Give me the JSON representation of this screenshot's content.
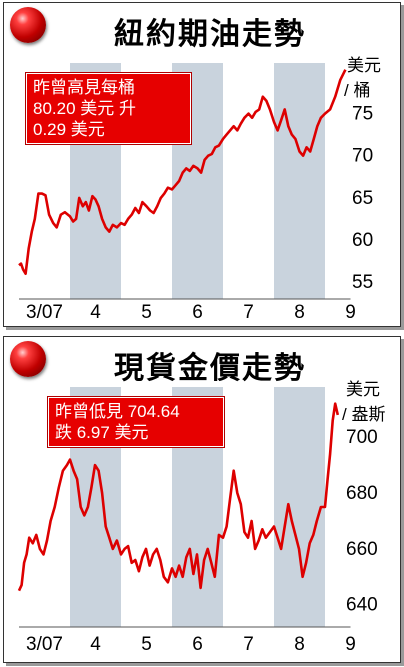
{
  "oil": {
    "title": "紐約期油走勢",
    "unit_line1": "美元",
    "unit_line2": "/ 桶",
    "callout": [
      "昨曾高見每桶",
      "80.20 美元 升",
      "0.29 美元"
    ]
  },
  "gold": {
    "title": "現貨金價走勢",
    "unit_line1": "美元",
    "unit_line2": "/ 盎斯",
    "callout": [
      "昨曾低見 704.64",
      "跌 6.97 美元"
    ]
  },
  "colors": {
    "line": "#dd0000",
    "band": "#c9d3dd",
    "callout_bg": "#e60000"
  },
  "chart_data": [
    {
      "type": "line",
      "title": "紐約期油走勢",
      "ylabel": "美元 / 桶",
      "months": [
        "3/07",
        "4",
        "5",
        "6",
        "7",
        "8",
        "9"
      ],
      "ylim": [
        53,
        81
      ],
      "yticks": [
        55,
        60,
        65,
        70,
        75
      ],
      "grid": false,
      "shaded_months": [
        "4",
        "6",
        "8"
      ],
      "x": [
        0,
        0.04,
        0.08,
        0.13,
        0.19,
        0.25,
        0.31,
        0.38,
        0.45,
        0.52,
        0.59,
        0.67,
        0.74,
        0.82,
        0.9,
        1.0,
        1.06,
        1.12,
        1.18,
        1.25,
        1.31,
        1.37,
        1.44,
        1.5,
        1.56,
        1.63,
        1.7,
        1.77,
        1.84,
        1.92,
        2.0,
        2.07,
        2.14,
        2.21,
        2.28,
        2.35,
        2.42,
        2.5,
        2.57,
        2.64,
        2.71,
        2.78,
        2.85,
        2.92,
        3.0,
        3.07,
        3.14,
        3.21,
        3.28,
        3.35,
        3.42,
        3.5,
        3.57,
        3.64,
        3.71,
        3.78,
        3.85,
        3.92,
        4.0,
        4.07,
        4.14,
        4.21,
        4.28,
        4.35,
        4.42,
        4.5,
        4.57,
        4.64,
        4.71,
        4.78,
        4.85,
        4.92,
        5.0,
        5.07,
        5.14,
        5.21,
        5.28,
        5.35,
        5.42,
        5.5,
        5.57,
        5.64,
        5.71,
        5.78,
        5.85,
        5.92,
        6.0,
        6.1,
        6.2,
        6.3,
        6.4
      ],
      "values": [
        57,
        57.2,
        56.5,
        56,
        59,
        61,
        62.5,
        65.5,
        65.5,
        65.3,
        63,
        62,
        61.5,
        63,
        63.3,
        62.8,
        62.2,
        62.5,
        65,
        64,
        64.5,
        63.5,
        65.2,
        64.8,
        64,
        62.5,
        61.5,
        61,
        61.8,
        61.5,
        62,
        61.8,
        62.5,
        63,
        63.8,
        63.2,
        64.5,
        64,
        63.5,
        63.2,
        64,
        65,
        65.5,
        66.2,
        66,
        66.5,
        67,
        68,
        68.5,
        68.2,
        68.8,
        68.5,
        68,
        69.5,
        70,
        70.2,
        71,
        71.2,
        72,
        72.5,
        73,
        73.5,
        73,
        73.8,
        74.5,
        75,
        74.5,
        75.2,
        75.5,
        77,
        76.5,
        75.5,
        74,
        73,
        74.2,
        75.5,
        73.5,
        72.5,
        72,
        70.5,
        70,
        71,
        70.5,
        72,
        73.5,
        74.5,
        75,
        75.5,
        77,
        79,
        80.2
      ]
    },
    {
      "type": "line",
      "title": "現貨金價走勢",
      "ylabel": "美元 / 盎斯",
      "months": [
        "3/07",
        "4",
        "5",
        "6",
        "7",
        "8",
        "9"
      ],
      "ylim": [
        632,
        718
      ],
      "yticks": [
        640,
        660,
        680,
        700
      ],
      "grid": false,
      "shaded_months": [
        "4",
        "6",
        "8"
      ],
      "x": [
        0,
        0.05,
        0.1,
        0.15,
        0.2,
        0.27,
        0.34,
        0.41,
        0.48,
        0.55,
        0.62,
        0.7,
        0.78,
        0.86,
        0.94,
        1.0,
        1.07,
        1.14,
        1.21,
        1.28,
        1.35,
        1.42,
        1.49,
        1.56,
        1.63,
        1.7,
        1.77,
        1.84,
        1.92,
        2.0,
        2.07,
        2.14,
        2.21,
        2.28,
        2.35,
        2.42,
        2.49,
        2.56,
        2.63,
        2.7,
        2.77,
        2.84,
        2.92,
        3.0,
        3.07,
        3.14,
        3.21,
        3.28,
        3.35,
        3.42,
        3.49,
        3.56,
        3.63,
        3.7,
        3.77,
        3.84,
        3.92,
        4.0,
        4.07,
        4.14,
        4.21,
        4.28,
        4.35,
        4.42,
        4.49,
        4.56,
        4.63,
        4.7,
        4.77,
        4.84,
        4.92,
        5.0,
        5.07,
        5.14,
        5.21,
        5.28,
        5.35,
        5.42,
        5.49,
        5.56,
        5.63,
        5.7,
        5.77,
        5.84,
        5.92,
        6.0,
        6.05,
        6.1,
        6.15,
        6.2,
        6.25
      ],
      "values": [
        645,
        647,
        655,
        658,
        664,
        662,
        665,
        660,
        658,
        663,
        670,
        675,
        682,
        688,
        690,
        692,
        688,
        685,
        675,
        672,
        675,
        682,
        690,
        688,
        680,
        668,
        664,
        660,
        663,
        658,
        660,
        661,
        655,
        656,
        652,
        657,
        660,
        654,
        658,
        660,
        656,
        650,
        648,
        653,
        650,
        654,
        650,
        657,
        660,
        651,
        658,
        646,
        656,
        660,
        655,
        650,
        665,
        664,
        668,
        678,
        688,
        680,
        676,
        666,
        664,
        670,
        660,
        663,
        667,
        664,
        666,
        668,
        664,
        660,
        668,
        676,
        670,
        665,
        660,
        650,
        655,
        662,
        665,
        670,
        675,
        675,
        685,
        694,
        706,
        712,
        708
      ]
    }
  ]
}
